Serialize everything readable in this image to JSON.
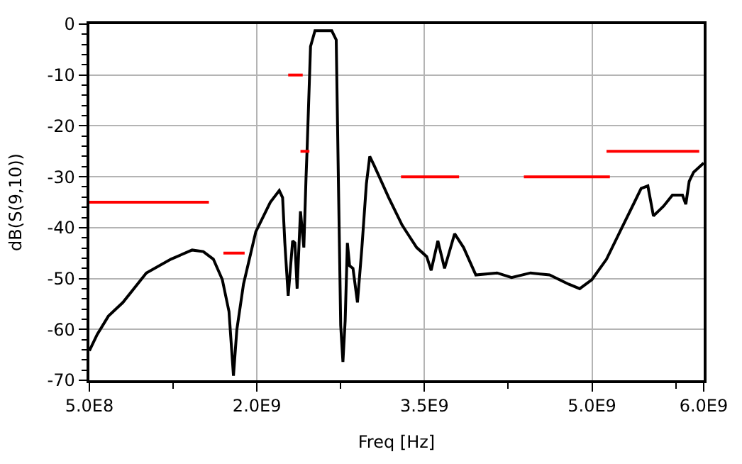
{
  "chart_data": {
    "type": "line",
    "xlabel": "Freq [Hz]",
    "ylabel": "dB(S(9,10))",
    "xlim": [
      500000000,
      6000000000
    ],
    "xticks": [
      {
        "value": 500000000,
        "label": "5.0E8"
      },
      {
        "value": 1250000000,
        "label": null
      },
      {
        "value": 2000000000,
        "label": "2.0E9"
      },
      {
        "value": 2750000000,
        "label": null
      },
      {
        "value": 3500000000,
        "label": "3.5E9"
      },
      {
        "value": 4250000000,
        "label": null
      },
      {
        "value": 5000000000,
        "label": "5.0E9"
      },
      {
        "value": 5750000000,
        "label": null
      },
      {
        "value": 6000000000,
        "label": "6.0E9"
      }
    ],
    "ylim": [
      -70,
      0
    ],
    "yticks": [
      -70,
      {
        "value": -68,
        "label": null
      },
      {
        "value": -66,
        "label": null
      },
      {
        "value": -64,
        "label": null
      },
      {
        "value": -62,
        "label": null
      },
      -60,
      {
        "value": -58,
        "label": null
      },
      {
        "value": -56,
        "label": null
      },
      {
        "value": -54,
        "label": null
      },
      {
        "value": -52,
        "label": null
      },
      -50,
      {
        "value": -48,
        "label": null
      },
      {
        "value": -46,
        "label": null
      },
      {
        "value": -44,
        "label": null
      },
      {
        "value": -42,
        "label": null
      },
      -40,
      {
        "value": -38,
        "label": null
      },
      {
        "value": -36,
        "label": null
      },
      {
        "value": -34,
        "label": null
      },
      {
        "value": -32,
        "label": null
      },
      -30,
      {
        "value": -28,
        "label": null
      },
      {
        "value": -26,
        "label": null
      },
      {
        "value": -24,
        "label": null
      },
      {
        "value": -22,
        "label": null
      },
      -20,
      {
        "value": -18,
        "label": null
      },
      {
        "value": -16,
        "label": null
      },
      {
        "value": -14,
        "label": null
      },
      {
        "value": -12,
        "label": null
      },
      -10,
      {
        "value": -8,
        "label": null
      },
      {
        "value": -6,
        "label": null
      },
      {
        "value": -4,
        "label": null
      },
      {
        "value": -2,
        "label": null
      },
      0
    ],
    "grid": true,
    "marker": "none",
    "line_style": "solid",
    "series": [
      {
        "color": "#000000",
        "x": [
          500000000,
          570000000,
          670000000,
          800000000,
          1010000000,
          1230000000,
          1420000000,
          1520000000,
          1610000000,
          1690000000,
          1750000000,
          1790000000,
          1820000000,
          1880000000,
          1990000000,
          2120000000,
          2200000000,
          2230000000,
          2250000000,
          2280000000,
          2320000000,
          2340000000,
          2360000000,
          2390000000,
          2420000000,
          2440000000,
          2450000000,
          2480000000,
          2520000000,
          2670000000,
          2710000000,
          2730000000,
          2750000000,
          2770000000,
          2790000000,
          2810000000,
          2830000000,
          2860000000,
          2900000000,
          2940000000,
          2980000000,
          3010000000,
          3050000000,
          3180000000,
          3300000000,
          3350000000,
          3430000000,
          3520000000,
          3560000000,
          3620000000,
          3680000000,
          3770000000,
          3850000000,
          3960000000,
          4150000000,
          4280000000,
          4450000000,
          4620000000,
          4790000000,
          4890000000,
          5000000000,
          5130000000,
          5250000000,
          5380000000,
          5440000000,
          5500000000,
          5550000000,
          5640000000,
          5720000000,
          5810000000,
          5840000000,
          5870000000,
          5910000000,
          6000000000
        ],
        "values": [
          -64.2,
          -61.0,
          -57.4,
          -54.7,
          -48.9,
          -46.2,
          -44.4,
          -44.7,
          -46.2,
          -50.2,
          -56.5,
          -69.1,
          -60.1,
          -51.1,
          -40.8,
          -35.0,
          -32.7,
          -34.1,
          -43.0,
          -53.4,
          -42.6,
          -43.0,
          -52.0,
          -36.8,
          -43.9,
          -30.0,
          -24.2,
          -4.4,
          -1.3,
          -1.3,
          -3.1,
          -31.4,
          -59.2,
          -66.4,
          -58.3,
          -43.0,
          -47.5,
          -48.0,
          -54.7,
          -43.9,
          -31.4,
          -26.0,
          -27.8,
          -34.1,
          -39.5,
          -41.2,
          -43.9,
          -45.7,
          -48.4,
          -42.6,
          -48.0,
          -41.2,
          -43.9,
          -49.3,
          -48.9,
          -49.8,
          -48.9,
          -49.3,
          -51.1,
          -52.0,
          -50.2,
          -46.2,
          -40.8,
          -35.0,
          -32.3,
          -31.8,
          -37.7,
          -35.8,
          -33.6,
          -33.6,
          -35.4,
          -30.9,
          -29.1,
          -27.3
        ]
      },
      {
        "color": "#ff0000",
        "x": [
          500000000,
          1570000000
        ],
        "values": [
          -35,
          -35
        ]
      },
      {
        "color": "#ff0000",
        "x": [
          1700000000,
          1890000000
        ],
        "values": [
          -45,
          -45
        ]
      },
      {
        "color": "#ff0000",
        "x": [
          2280000000,
          2410000000
        ],
        "values": [
          -10,
          -10
        ]
      },
      {
        "color": "#ff0000",
        "x": [
          2390000000,
          2470000000
        ],
        "values": [
          -25,
          -25
        ]
      },
      {
        "color": "#ff0000",
        "x": [
          3290000000,
          3810000000
        ],
        "values": [
          -30,
          -30
        ]
      },
      {
        "color": "#ff0000",
        "x": [
          4390000000,
          5160000000
        ],
        "values": [
          -30,
          -30
        ]
      },
      {
        "color": "#ff0000",
        "x": [
          5130000000,
          5960000000
        ],
        "values": [
          -25,
          -25
        ]
      }
    ]
  }
}
